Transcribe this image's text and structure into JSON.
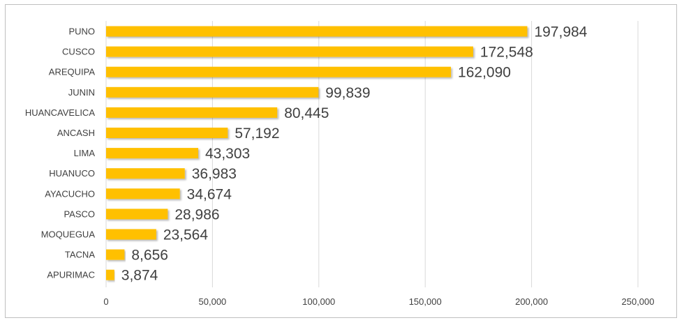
{
  "chart_data": {
    "type": "bar",
    "orientation": "horizontal",
    "categories": [
      "PUNO",
      "CUSCO",
      "AREQUIPA",
      "JUNIN",
      "HUANCAVELICA",
      "ANCASH",
      "LIMA",
      "HUANUCO",
      "AYACUCHO",
      "PASCO",
      "MOQUEGUA",
      "TACNA",
      "APURIMAC"
    ],
    "values": [
      197984,
      172548,
      162090,
      99839,
      80445,
      57192,
      43303,
      36983,
      34674,
      28986,
      23564,
      8656,
      3874
    ],
    "value_labels": [
      "197,984",
      "172,548",
      "162,090",
      "99,839",
      "80,445",
      "57,192",
      "43,303",
      "36,983",
      "34,674",
      "28,986",
      "23,564",
      "8,656",
      "3,874"
    ],
    "xlim": [
      0,
      250000
    ],
    "x_ticks": [
      0,
      50000,
      100000,
      150000,
      200000,
      250000
    ],
    "x_tick_labels": [
      "0",
      "50,000",
      "100,000",
      "150,000",
      "200,000",
      "250,000"
    ],
    "title": "",
    "xlabel": "",
    "ylabel": "",
    "grid": true,
    "legend": "none",
    "bar_color": "#FFC000",
    "grid_color": "#d9d9d9",
    "text_color": "#404040"
  }
}
